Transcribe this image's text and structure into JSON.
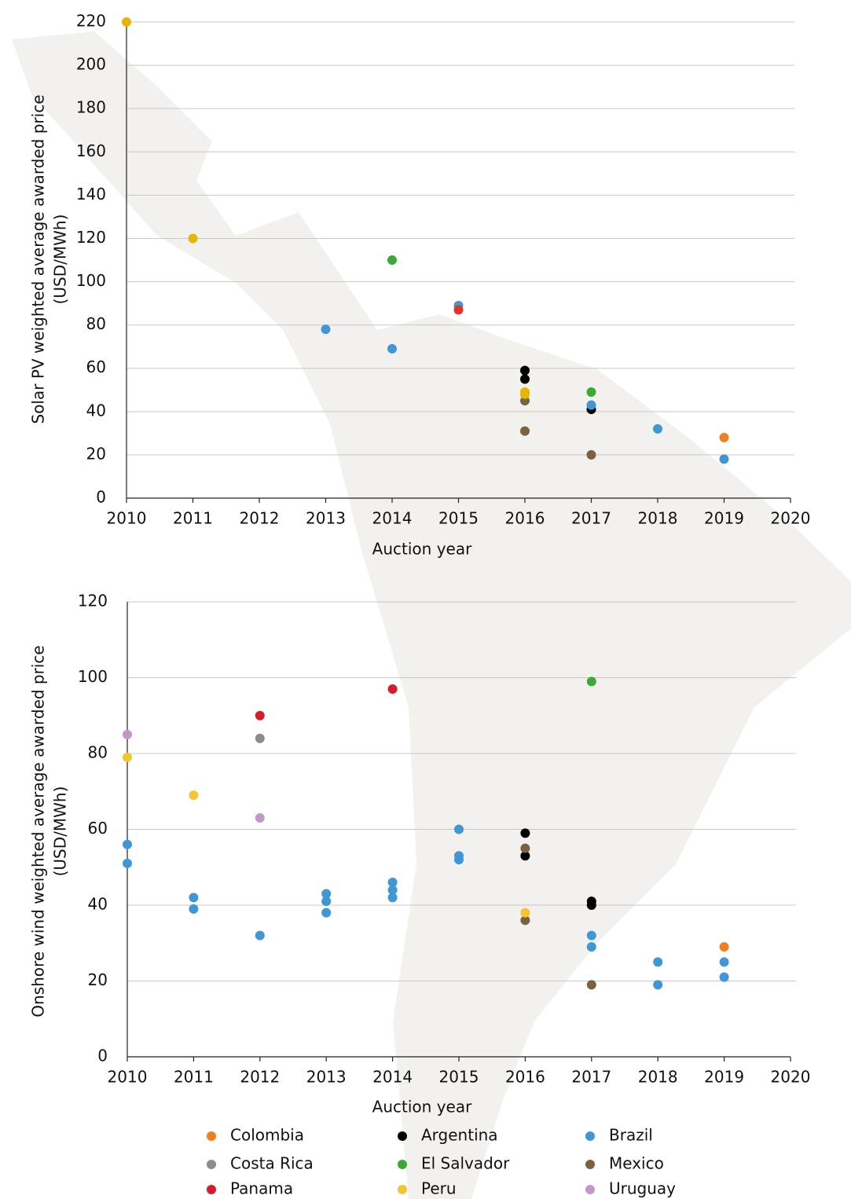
{
  "chart_data": [
    {
      "type": "scatter",
      "ylabel": [
        "Solar PV weighted average awarded price",
        "(USD/MWh)"
      ],
      "xlabel": "Auction year",
      "xlim": [
        2010,
        2020
      ],
      "xticks": [
        2010,
        2011,
        2012,
        2013,
        2014,
        2015,
        2016,
        2017,
        2018,
        2019,
        2020
      ],
      "ylim": [
        0,
        220
      ],
      "yticks": [
        0,
        20,
        40,
        60,
        80,
        100,
        120,
        140,
        160,
        180,
        200,
        220
      ],
      "grid": true,
      "series": [
        {
          "color": "#f07f1e",
          "x": [
            2019
          ],
          "values": [
            28
          ]
        },
        {
          "color": "#000000",
          "x": [
            2016,
            2016,
            2017
          ],
          "values": [
            59,
            55,
            41
          ]
        },
        {
          "color": "#3f97d6",
          "x": [
            2013,
            2014,
            2015,
            2017,
            2018,
            2019
          ],
          "values": [
            78,
            69,
            89,
            43,
            32,
            18
          ]
        },
        {
          "color": "#3aa935",
          "x": [
            2014,
            2017
          ],
          "values": [
            110,
            49
          ]
        },
        {
          "color": "#7a6240",
          "x": [
            2016,
            2016,
            2017
          ],
          "values": [
            45,
            31,
            20
          ]
        },
        {
          "color": "#e4322b",
          "x": [
            2015
          ],
          "values": [
            87
          ]
        },
        {
          "color": "#e8b400",
          "x": [
            2010,
            2011,
            2016,
            2016
          ],
          "values": [
            220,
            120,
            49,
            48
          ]
        }
      ]
    },
    {
      "type": "scatter",
      "ylabel": [
        "Onshore wind weighted average awarded price",
        "(USD/MWh)"
      ],
      "xlabel": "Auction year",
      "xlim": [
        2010,
        2020
      ],
      "xticks": [
        2010,
        2011,
        2012,
        2013,
        2014,
        2015,
        2016,
        2017,
        2018,
        2019,
        2020
      ],
      "ylim": [
        0,
        120
      ],
      "yticks": [
        0,
        20,
        40,
        60,
        80,
        100,
        120
      ],
      "grid": true,
      "series": [
        {
          "name": "Colombia",
          "color": "#f07f1e",
          "x": [
            2019
          ],
          "values": [
            29
          ]
        },
        {
          "name": "Argentina",
          "color": "#000000",
          "x": [
            2016,
            2016,
            2017,
            2017
          ],
          "values": [
            59,
            53,
            41,
            40
          ]
        },
        {
          "name": "Brazil",
          "color": "#3f97d6",
          "x": [
            2010,
            2010,
            2011,
            2011,
            2012,
            2013,
            2013,
            2013,
            2014,
            2014,
            2014,
            2015,
            2015,
            2015,
            2017,
            2017,
            2018,
            2018,
            2019,
            2019
          ],
          "values": [
            56,
            51,
            42,
            39,
            32,
            43,
            41,
            38,
            46,
            44,
            42,
            60,
            53,
            52,
            32,
            29,
            25,
            19,
            25,
            21
          ]
        },
        {
          "name": "Costa Rica",
          "color": "#8c8c8c",
          "x": [
            2012
          ],
          "values": [
            84
          ]
        },
        {
          "name": "El Salvador",
          "color": "#3aa935",
          "x": [
            2017
          ],
          "values": [
            99
          ]
        },
        {
          "name": "Mexico",
          "color": "#7a6240",
          "x": [
            2016,
            2016,
            2017
          ],
          "values": [
            55,
            36,
            19
          ]
        },
        {
          "name": "Panama",
          "color": "#d91a2a",
          "x": [
            2012,
            2014
          ],
          "values": [
            90,
            97
          ]
        },
        {
          "name": "Peru",
          "color": "#f2c531",
          "x": [
            2010,
            2011,
            2016
          ],
          "values": [
            79,
            69,
            38
          ]
        },
        {
          "name": "Uruguay",
          "color": "#c596c9",
          "x": [
            2010,
            2012
          ],
          "values": [
            85,
            63
          ]
        }
      ]
    }
  ]
}
